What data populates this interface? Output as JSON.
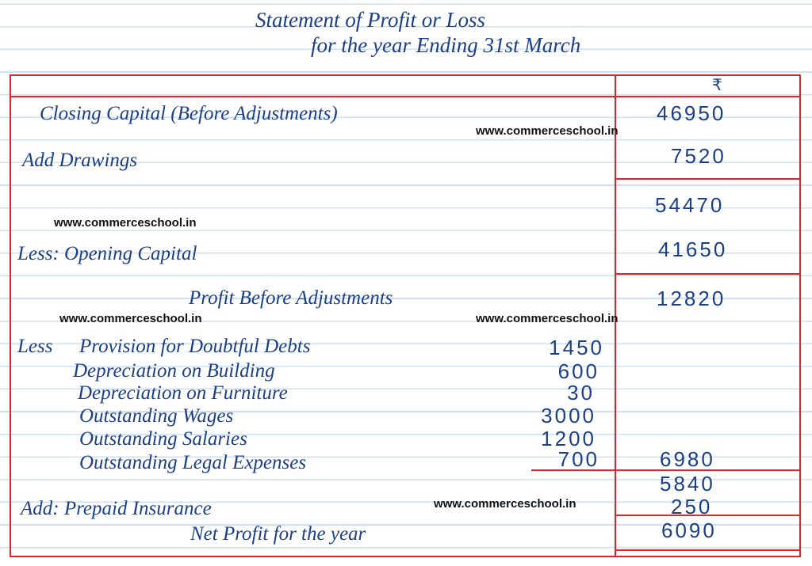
{
  "title": {
    "line1": "Statement of Profit or Loss",
    "line2": "for the year Ending 31st March"
  },
  "currency_header": "₹",
  "rows": {
    "closing_capital": {
      "label": "Closing Capital (Before Adjustments)",
      "amount": "46950"
    },
    "add_drawings": {
      "label": "Add Drawings",
      "amount": "7520"
    },
    "subtotal1": "54470",
    "less_opening": {
      "label": "Less: Opening Capital",
      "amount": "41650"
    },
    "profit_before": {
      "label": "Profit Before Adjustments",
      "amount": "12820"
    },
    "less_prefix": "Less",
    "adjustments": [
      {
        "label": "Provision for Doubtful Debts",
        "amount": "1450"
      },
      {
        "label": "Depreciation on Building",
        "amount": "600"
      },
      {
        "label": "Depreciation on Furniture",
        "amount": "30"
      },
      {
        "label": "Outstanding Wages",
        "amount": "3000"
      },
      {
        "label": "Outstanding Salaries",
        "amount": "1200"
      },
      {
        "label": "Outstanding Legal Expenses",
        "amount": "700"
      }
    ],
    "adjustments_total": "6980",
    "subtotal2": "5840",
    "add_prepaid": {
      "label": "Add: Prepaid Insurance",
      "amount": "250"
    },
    "net_profit": {
      "label": "Net Profit for the year",
      "amount": "6090"
    }
  },
  "watermark": "www.commerceschool.in",
  "colors": {
    "ink": "#1b3f86",
    "rule": "#e8202a",
    "paper_lines": "#cfe0f0"
  }
}
